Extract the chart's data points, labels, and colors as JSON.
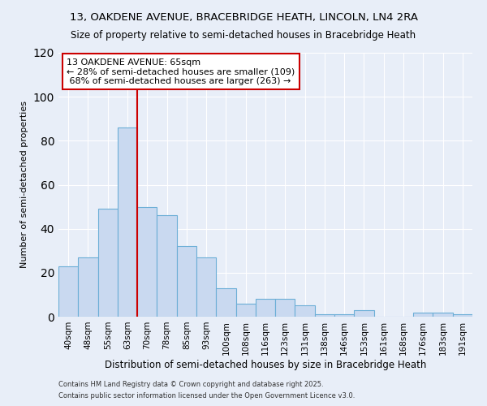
{
  "title": "13, OAKDENE AVENUE, BRACEBRIDGE HEATH, LINCOLN, LN4 2RA",
  "subtitle": "Size of property relative to semi-detached houses in Bracebridge Heath",
  "xlabel": "Distribution of semi-detached houses by size in Bracebridge Heath",
  "ylabel": "Number of semi-detached properties",
  "categories": [
    "40sqm",
    "48sqm",
    "55sqm",
    "63sqm",
    "70sqm",
    "78sqm",
    "85sqm",
    "93sqm",
    "100sqm",
    "108sqm",
    "116sqm",
    "123sqm",
    "131sqm",
    "138sqm",
    "146sqm",
    "153sqm",
    "161sqm",
    "168sqm",
    "176sqm",
    "183sqm",
    "191sqm"
  ],
  "values": [
    23,
    27,
    49,
    86,
    50,
    46,
    32,
    27,
    13,
    6,
    8,
    8,
    5,
    1,
    1,
    3,
    0,
    0,
    2,
    2,
    1
  ],
  "bar_color": "#c9d9f0",
  "bar_edge_color": "#6baed6",
  "vline_x_index": 4,
  "vline_color": "#cc0000",
  "annotation_line1": "13 OAKDENE AVENUE: 65sqm",
  "annotation_line2": "← 28% of semi-detached houses are smaller (109)",
  "annotation_line3": " 68% of semi-detached houses are larger (263) →",
  "annotation_box_color": "#ffffff",
  "annotation_box_edge": "#cc0000",
  "ylim": [
    0,
    120
  ],
  "yticks": [
    0,
    20,
    40,
    60,
    80,
    100,
    120
  ],
  "footer1": "Contains HM Land Registry data © Crown copyright and database right 2025.",
  "footer2": "Contains public sector information licensed under the Open Government Licence v3.0.",
  "bg_color": "#e8eef8",
  "plot_bg_color": "#e8eef8",
  "title_fontsize": 9.5,
  "subtitle_fontsize": 8.5
}
